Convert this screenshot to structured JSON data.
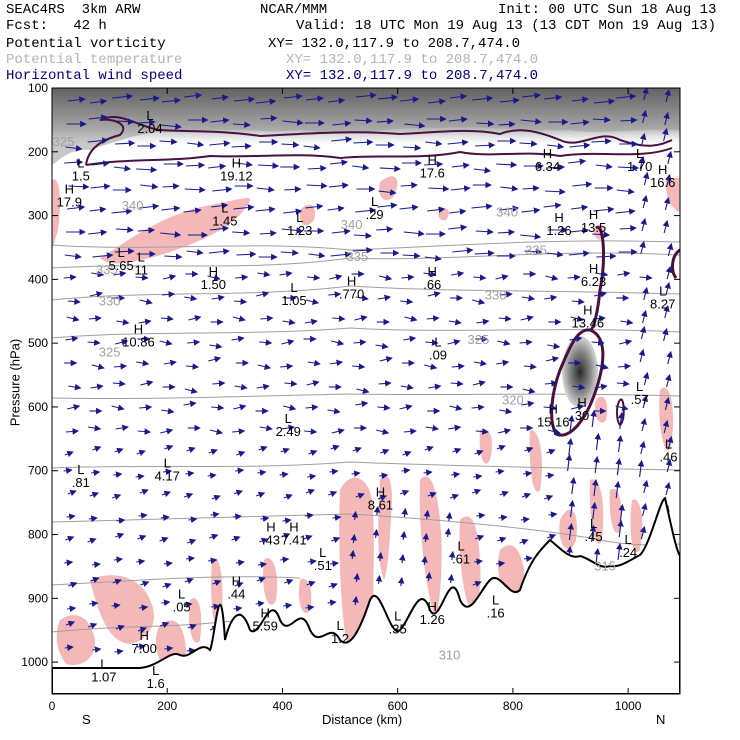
{
  "header": {
    "model": "SEAC4RS  3km ARW",
    "center": "NCAR/MMM",
    "init": "Init: 00 UTC Sun 18 Aug 13",
    "fcst": "Fcst:   42 h",
    "valid": "Valid: 18 UTC Mon 19 Aug 13 (13 CDT Mon 19 Aug 13)",
    "fields": [
      {
        "name": "Potential vorticity",
        "xy": "XY= 132.0,117.9 to 208.7,474.0",
        "color": "#000000"
      },
      {
        "name": "Potential temperature",
        "xy": "XY= 132.0,117.9 to 208.7,474.0",
        "color": "#b4b4b4"
      },
      {
        "name": "Horizontal wind speed",
        "xy": "XY= 132.0,117.9 to 208.7,474.0",
        "color": "#000080"
      }
    ]
  },
  "chart_data": {
    "type": "cross-section",
    "xlabel": "Distance (km)",
    "ylabel": "Pressure (hPa)",
    "xlim": [
      0,
      1090
    ],
    "ylim": [
      1050,
      100
    ],
    "x_ticks": [
      0,
      200,
      400,
      600,
      800,
      1000
    ],
    "y_ticks": [
      100,
      200,
      300,
      400,
      500,
      600,
      700,
      800,
      900,
      1000
    ],
    "end_labels": {
      "left": "S",
      "right": "N"
    },
    "theta_labels": [
      {
        "text": "325",
        "x": 20,
        "y": 185
      },
      {
        "text": "340",
        "x": 140,
        "y": 285
      },
      {
        "text": "340",
        "x": 520,
        "y": 315
      },
      {
        "text": "340",
        "x": 790,
        "y": 295
      },
      {
        "text": "335",
        "x": 95,
        "y": 385
      },
      {
        "text": "335",
        "x": 530,
        "y": 365
      },
      {
        "text": "335",
        "x": 840,
        "y": 355
      },
      {
        "text": "330",
        "x": 100,
        "y": 435
      },
      {
        "text": "330",
        "x": 770,
        "y": 425
      },
      {
        "text": "325",
        "x": 100,
        "y": 515
      },
      {
        "text": "325",
        "x": 740,
        "y": 495
      },
      {
        "text": "320",
        "x": 800,
        "y": 590
      },
      {
        "text": "310",
        "x": 690,
        "y": 990
      },
      {
        "text": "315",
        "x": 960,
        "y": 850
      }
    ],
    "extrema": [
      {
        "type": "L",
        "value": "2.04",
        "x": 170,
        "y": 150
      },
      {
        "type": "L",
        "value": "1.5",
        "x": 50,
        "y": 225
      },
      {
        "type": "H",
        "value": "17.9",
        "x": 30,
        "y": 265
      },
      {
        "type": "H",
        "value": "19.12",
        "x": 320,
        "y": 225
      },
      {
        "type": "L",
        "value": "1.45",
        "x": 300,
        "y": 295
      },
      {
        "type": "L",
        "value": "1.23",
        "x": 430,
        "y": 310
      },
      {
        "type": "L",
        "value": ".29",
        "x": 560,
        "y": 285
      },
      {
        "type": "H",
        "value": "17.6",
        "x": 660,
        "y": 220
      },
      {
        "type": "H",
        "value": "6.34",
        "x": 860,
        "y": 210
      },
      {
        "type": "L",
        "value": "1.70",
        "x": 1020,
        "y": 210
      },
      {
        "type": "H",
        "value": "16.6",
        "x": 1060,
        "y": 235
      },
      {
        "type": "H",
        "value": "1.26",
        "x": 880,
        "y": 310
      },
      {
        "type": "H",
        "value": "13.5",
        "x": 940,
        "y": 305
      },
      {
        "type": "L",
        "value": "5.65",
        "x": 120,
        "y": 365
      },
      {
        "type": "L",
        "value": "11",
        "x": 155,
        "y": 372
      },
      {
        "type": "H",
        "value": "1.50",
        "x": 280,
        "y": 395
      },
      {
        "type": "H",
        "value": ".770",
        "x": 520,
        "y": 410
      },
      {
        "type": "L",
        "value": "1.05",
        "x": 420,
        "y": 420
      },
      {
        "type": "H",
        "value": ".66",
        "x": 660,
        "y": 395
      },
      {
        "type": "H",
        "value": "6.23",
        "x": 940,
        "y": 390
      },
      {
        "type": "L",
        "value": "8.27",
        "x": 1060,
        "y": 425
      },
      {
        "type": "H",
        "value": "10.86",
        "x": 150,
        "y": 485
      },
      {
        "type": "H",
        "value": "13.46",
        "x": 930,
        "y": 455
      },
      {
        "type": "L",
        "value": ".09",
        "x": 670,
        "y": 505
      },
      {
        "type": "L",
        "value": "2.49",
        "x": 410,
        "y": 625
      },
      {
        "type": "H",
        "value": "15.16",
        "x": 870,
        "y": 610
      },
      {
        "type": "H",
        "value": "30",
        "x": 920,
        "y": 600
      },
      {
        "type": "L",
        "value": ".57",
        "x": 1020,
        "y": 575
      },
      {
        "type": "L",
        "value": ".81",
        "x": 50,
        "y": 705
      },
      {
        "type": "L",
        "value": "4.17",
        "x": 200,
        "y": 695
      },
      {
        "type": "L",
        "value": ".46",
        "x": 1070,
        "y": 665
      },
      {
        "type": "H",
        "value": "8.61",
        "x": 570,
        "y": 740
      },
      {
        "type": "L",
        "value": ".45",
        "x": 940,
        "y": 790
      },
      {
        "type": "H",
        "value": ".43",
        "x": 380,
        "y": 795
      },
      {
        "type": "H",
        "value": "7.41",
        "x": 420,
        "y": 795
      },
      {
        "type": "L",
        "value": ".51",
        "x": 470,
        "y": 835
      },
      {
        "type": "L",
        "value": ".61",
        "x": 710,
        "y": 825
      },
      {
        "type": "L",
        "value": ".24",
        "x": 1000,
        "y": 815
      },
      {
        "type": "H",
        "value": ".44",
        "x": 320,
        "y": 880
      },
      {
        "type": "L",
        "value": ".05",
        "x": 225,
        "y": 900
      },
      {
        "type": "H",
        "value": "5.59",
        "x": 370,
        "y": 930
      },
      {
        "type": "L",
        "value": ".16",
        "x": 770,
        "y": 910
      },
      {
        "type": "L",
        "value": "1.2",
        "x": 500,
        "y": 950
      },
      {
        "type": "L",
        "value": ".35",
        "x": 600,
        "y": 935
      },
      {
        "type": "H",
        "value": "1.26",
        "x": 660,
        "y": 920
      },
      {
        "type": "H",
        "value": "7.00",
        "x": 160,
        "y": 965
      },
      {
        "type": "L",
        "value": "1.07",
        "x": 90,
        "y": 1010
      },
      {
        "type": "L",
        "value": "1.6",
        "x": 180,
        "y": 1020
      }
    ]
  },
  "colors": {
    "wind": "#1a1a8c",
    "theta": "#a0a0a0",
    "pv_contour": "#4a1040",
    "pv_shade": "#f4b8b8",
    "terrain": "#000000"
  }
}
